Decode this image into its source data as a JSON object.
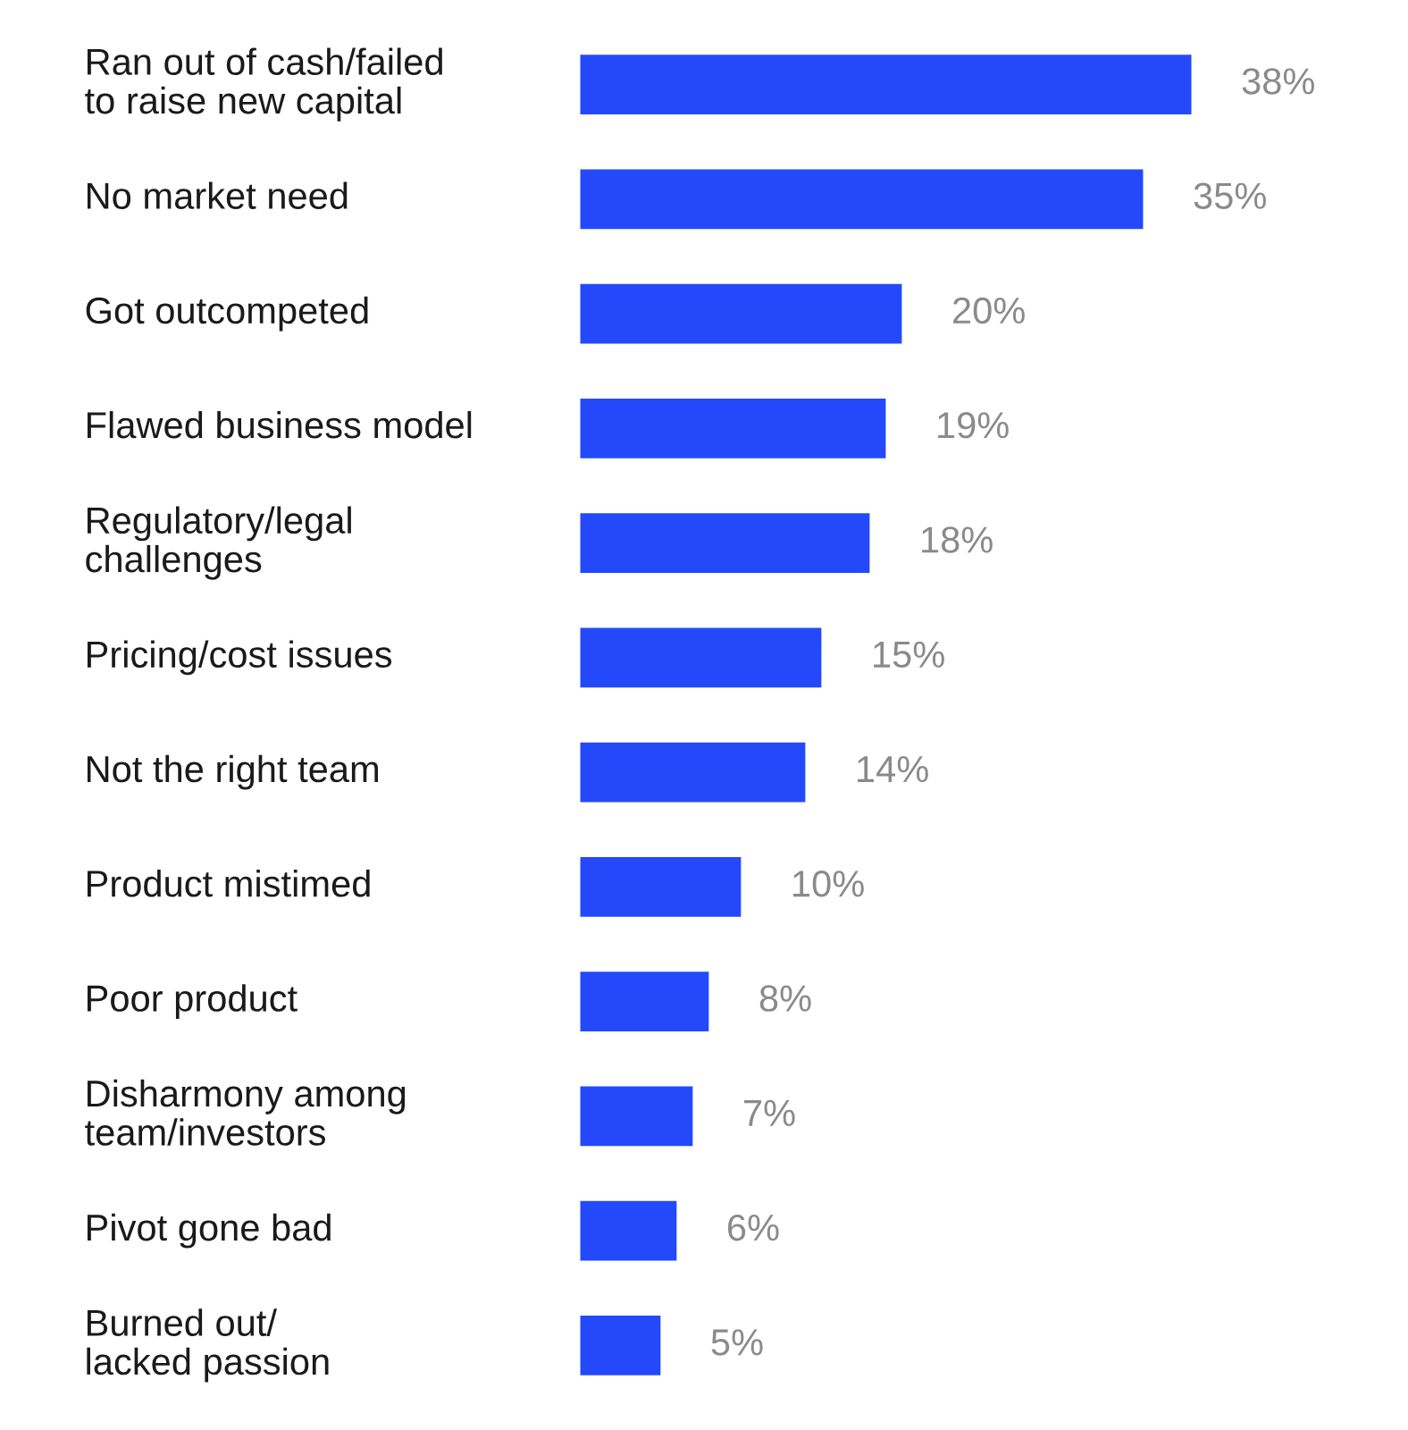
{
  "chart_data": {
    "type": "bar",
    "orientation": "horizontal",
    "categories": [
      "Ran out of cash/failed\nto raise new capital",
      "No market need",
      "Got outcompeted",
      "Flawed business model",
      "Regulatory/legal\nchallenges",
      "Pricing/cost issues",
      "Not the right team",
      "Product mistimed",
      "Poor product",
      "Disharmony among\nteam/investors",
      "Pivot gone bad",
      "Burned out/\nlacked passion"
    ],
    "values": [
      38,
      35,
      20,
      19,
      18,
      15,
      14,
      10,
      8,
      7,
      6,
      5
    ],
    "color": "#2349fb",
    "value_labels": [
      "38%",
      "35%",
      "20%",
      "19%",
      "18%",
      "15%",
      "14%",
      "10%",
      "8%",
      "7%",
      "6%",
      "5%"
    ]
  }
}
